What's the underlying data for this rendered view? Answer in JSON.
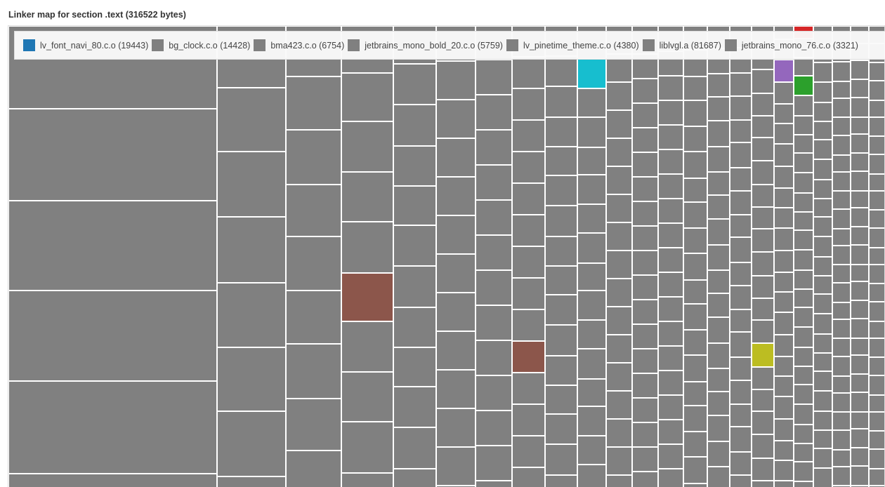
{
  "chart_data": {
    "type": "treemap",
    "title": "Linker map for section .text (316522 bytes)",
    "legend": [
      {
        "label": "lv_font_navi_80.c.o (19443)",
        "color": "#1f77b4"
      },
      {
        "label": "bg_clock.c.o (14428)",
        "color": "#808080"
      },
      {
        "label": "bma423.c.o (6754)",
        "color": "#808080"
      },
      {
        "label": "jetbrains_mono_bold_20.c.o (5759)",
        "color": "#808080"
      },
      {
        "label": "lv_pinetime_theme.c.o (4380)",
        "color": "#808080"
      },
      {
        "label": "liblvgl.a (81687)",
        "color": "#808080"
      },
      {
        "label": "jetbrains_mono_76.c.o (3321)",
        "color": "#808080"
      }
    ],
    "cell_color": "#808080",
    "highlight_colors": [
      "#d62728",
      "#9467bd",
      "#17becf",
      "#8c564b",
      "#bcbd22",
      "#2ca02c"
    ]
  }
}
